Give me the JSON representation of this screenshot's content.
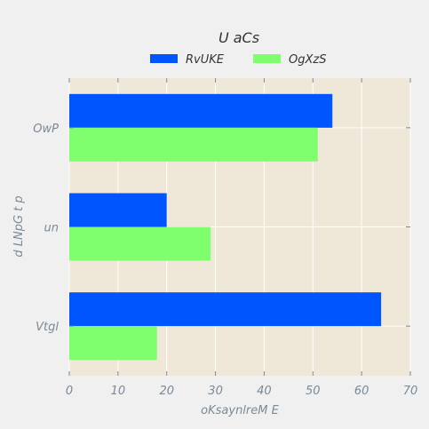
{
  "chart_data": {
    "type": "bar",
    "orientation": "horizontal",
    "title": "U aCs",
    "xlabel": "oKsaynlreM E",
    "ylabel": "d  LNpG t p",
    "categories": [
      "OwP",
      "un",
      "Vtgl"
    ],
    "series": [
      {
        "name": "RvUKE",
        "values": [
          54,
          20,
          64
        ]
      },
      {
        "name": "OgXzS",
        "values": [
          51,
          29,
          18
        ]
      }
    ],
    "xlim": [
      0,
      70
    ],
    "xticks": [
      "0",
      "10",
      "20",
      "30",
      "40",
      "50",
      "60",
      "70"
    ],
    "grid": true,
    "legend_position": "top-center",
    "colors": {
      "plot_background": "#efe8d8",
      "page_background": "#f0f0f0",
      "series": [
        "#0055ff",
        "#7fff6e"
      ],
      "text": "#7a8a96",
      "title": "#333333"
    }
  }
}
